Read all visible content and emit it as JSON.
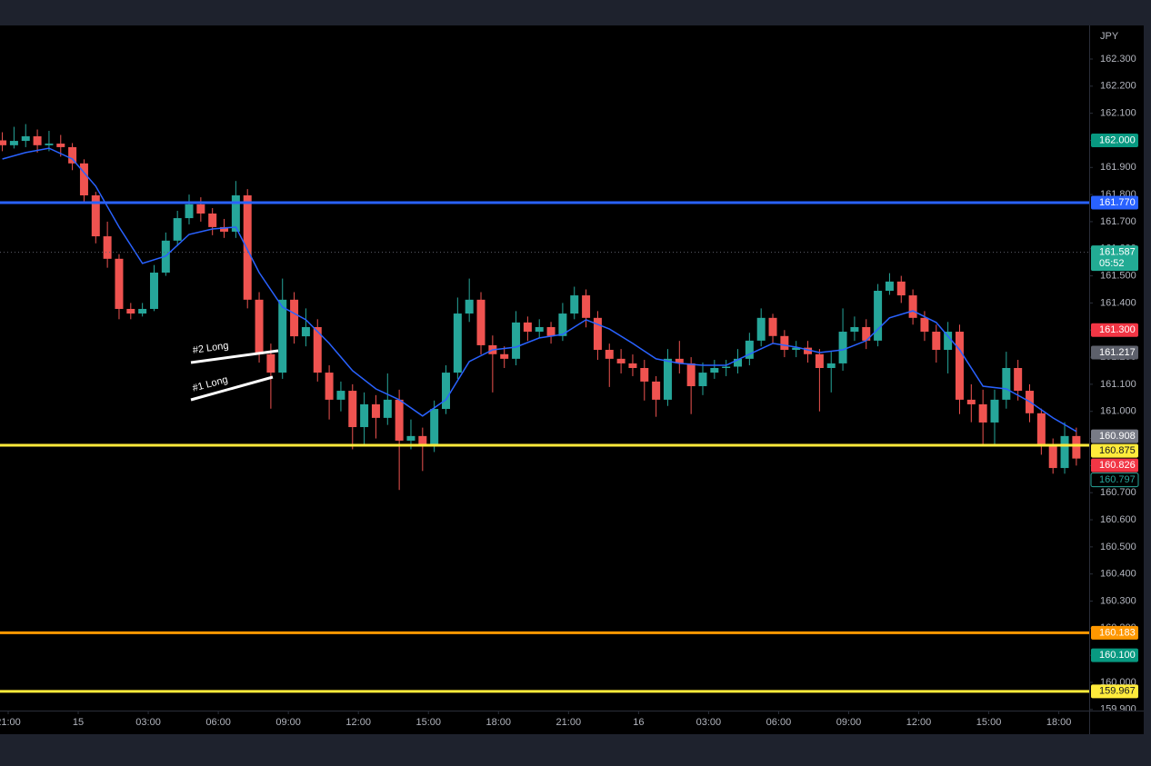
{
  "chart_data": {
    "type": "candlestick",
    "currency": "JPY",
    "up_color": "#26a69a",
    "down_color": "#ef5350",
    "xlim": [
      -13.4,
      173.2
    ],
    "ylim": [
      159.896,
      162.424
    ],
    "xticks": [
      {
        "value": -12,
        "label": "21:00"
      },
      {
        "value": 0,
        "label": "15"
      },
      {
        "value": 12,
        "label": "03:00"
      },
      {
        "value": 24,
        "label": "06:00"
      },
      {
        "value": 36,
        "label": "09:00"
      },
      {
        "value": 48,
        "label": "12:00"
      },
      {
        "value": 60,
        "label": "15:00"
      },
      {
        "value": 72,
        "label": "18:00"
      },
      {
        "value": 84,
        "label": "21:00"
      },
      {
        "value": 96,
        "label": "16"
      },
      {
        "value": 108,
        "label": "03:00"
      },
      {
        "value": 120,
        "label": "06:00"
      },
      {
        "value": 132,
        "label": "09:00"
      },
      {
        "value": 144,
        "label": "12:00"
      },
      {
        "value": 156,
        "label": "15:00"
      },
      {
        "value": 168,
        "label": "18:00"
      }
    ],
    "yticks": [
      {
        "value": 159.9,
        "label": "159.900"
      },
      {
        "value": 160.0,
        "label": "160.000"
      },
      {
        "value": 160.1,
        "label": "160.100"
      },
      {
        "value": 160.2,
        "label": "160.200"
      },
      {
        "value": 160.3,
        "label": "160.300"
      },
      {
        "value": 160.4,
        "label": "160.400"
      },
      {
        "value": 160.5,
        "label": "160.500"
      },
      {
        "value": 160.6,
        "label": "160.600"
      },
      {
        "value": 160.7,
        "label": "160.700"
      },
      {
        "value": 160.8,
        "label": "160.800"
      },
      {
        "value": 160.9,
        "label": "160.900"
      },
      {
        "value": 161.0,
        "label": "161.000"
      },
      {
        "value": 161.1,
        "label": "161.100"
      },
      {
        "value": 161.2,
        "label": "161.200"
      },
      {
        "value": 161.3,
        "label": "161.300"
      },
      {
        "value": 161.4,
        "label": "161.400"
      },
      {
        "value": 161.5,
        "label": "161.500"
      },
      {
        "value": 161.6,
        "label": "161.600"
      },
      {
        "value": 161.7,
        "label": "161.700"
      },
      {
        "value": 161.8,
        "label": "161.800"
      },
      {
        "value": 161.9,
        "label": "161.900"
      },
      {
        "value": 162.0,
        "label": "162.000"
      },
      {
        "value": 162.1,
        "label": "162.100"
      },
      {
        "value": 162.2,
        "label": "162.200"
      },
      {
        "value": 162.3,
        "label": "162.300"
      }
    ],
    "x": [
      -13,
      -11,
      -9,
      -7,
      -5,
      -3,
      -1,
      1,
      3,
      5,
      7,
      9,
      11,
      13,
      15,
      17,
      19,
      21,
      23,
      25,
      27,
      29,
      31,
      33,
      35,
      37,
      39,
      41,
      43,
      45,
      47,
      49,
      51,
      53,
      55,
      57,
      59,
      61,
      63,
      65,
      67,
      69,
      71,
      73,
      75,
      77,
      79,
      81,
      83,
      85,
      87,
      89,
      91,
      93,
      95,
      97,
      99,
      101,
      103,
      105,
      107,
      109,
      111,
      113,
      115,
      117,
      119,
      121,
      123,
      125,
      127,
      129,
      131,
      133,
      135,
      137,
      139,
      141,
      143,
      145,
      147,
      149,
      151,
      153,
      155,
      157,
      159,
      161,
      163,
      165,
      167,
      169,
      171
    ],
    "ohlc": [
      [
        162.0,
        162.03,
        161.96,
        161.982
      ],
      [
        161.982,
        162.05,
        161.97,
        161.998
      ],
      [
        161.998,
        162.06,
        161.975,
        162.015
      ],
      [
        162.015,
        162.04,
        161.955,
        161.982
      ],
      [
        161.982,
        162.035,
        161.96,
        161.988
      ],
      [
        161.988,
        162.02,
        161.94,
        161.975
      ],
      [
        161.975,
        161.99,
        161.89,
        161.915
      ],
      [
        161.915,
        161.93,
        161.77,
        161.797
      ],
      [
        161.797,
        161.81,
        161.62,
        161.646
      ],
      [
        161.646,
        161.7,
        161.53,
        161.563
      ],
      [
        161.563,
        161.58,
        161.34,
        161.378
      ],
      [
        161.378,
        161.4,
        161.34,
        161.361
      ],
      [
        161.361,
        161.4,
        161.35,
        161.378
      ],
      [
        161.378,
        161.54,
        161.37,
        161.512
      ],
      [
        161.512,
        161.66,
        161.5,
        161.63
      ],
      [
        161.63,
        161.74,
        161.61,
        161.713
      ],
      [
        161.713,
        161.8,
        161.69,
        161.764
      ],
      [
        161.764,
        161.79,
        161.7,
        161.73
      ],
      [
        161.73,
        161.75,
        161.65,
        161.68
      ],
      [
        161.68,
        161.71,
        161.64,
        161.663
      ],
      [
        161.663,
        161.85,
        161.64,
        161.797
      ],
      [
        161.797,
        161.82,
        161.38,
        161.412
      ],
      [
        161.412,
        161.44,
        161.18,
        161.211
      ],
      [
        161.211,
        161.25,
        161.01,
        161.143
      ],
      [
        161.143,
        161.49,
        161.12,
        161.412
      ],
      [
        161.412,
        161.44,
        161.25,
        161.277
      ],
      [
        161.277,
        161.38,
        161.24,
        161.311
      ],
      [
        161.311,
        161.34,
        161.11,
        161.143
      ],
      [
        161.143,
        161.17,
        160.97,
        161.043
      ],
      [
        161.043,
        161.11,
        161.0,
        161.076
      ],
      [
        161.076,
        161.1,
        160.86,
        160.942
      ],
      [
        160.942,
        161.07,
        160.88,
        161.026
      ],
      [
        161.026,
        161.06,
        160.9,
        160.976
      ],
      [
        160.976,
        161.14,
        160.95,
        161.043
      ],
      [
        161.043,
        161.08,
        160.71,
        160.892
      ],
      [
        160.892,
        160.97,
        160.86,
        160.909
      ],
      [
        160.909,
        160.94,
        160.78,
        160.875
      ],
      [
        160.875,
        161.04,
        160.85,
        161.009
      ],
      [
        161.009,
        161.17,
        160.99,
        161.143
      ],
      [
        161.143,
        161.42,
        161.12,
        161.361
      ],
      [
        161.361,
        161.49,
        161.33,
        161.412
      ],
      [
        161.412,
        161.44,
        161.21,
        161.244
      ],
      [
        161.244,
        161.28,
        161.07,
        161.211
      ],
      [
        161.211,
        161.24,
        161.16,
        161.194
      ],
      [
        161.194,
        161.37,
        161.17,
        161.328
      ],
      [
        161.328,
        161.35,
        161.26,
        161.294
      ],
      [
        161.294,
        161.34,
        161.27,
        161.311
      ],
      [
        161.311,
        161.33,
        161.25,
        161.278
      ],
      [
        161.278,
        161.4,
        161.26,
        161.361
      ],
      [
        161.361,
        161.46,
        161.34,
        161.428
      ],
      [
        161.428,
        161.45,
        161.31,
        161.345
      ],
      [
        161.345,
        161.37,
        161.19,
        161.227
      ],
      [
        161.227,
        161.25,
        161.09,
        161.194
      ],
      [
        161.194,
        161.23,
        161.14,
        161.177
      ],
      [
        161.177,
        161.21,
        161.13,
        161.16
      ],
      [
        161.16,
        161.19,
        161.04,
        161.11
      ],
      [
        161.11,
        161.13,
        160.98,
        161.043
      ],
      [
        161.043,
        161.23,
        161.02,
        161.194
      ],
      [
        161.194,
        161.26,
        161.14,
        161.177
      ],
      [
        161.177,
        161.2,
        160.99,
        161.093
      ],
      [
        161.093,
        161.18,
        161.06,
        161.143
      ],
      [
        161.143,
        161.19,
        161.12,
        161.16
      ],
      [
        161.16,
        161.19,
        161.13,
        161.165
      ],
      [
        161.165,
        161.23,
        161.14,
        161.194
      ],
      [
        161.194,
        161.29,
        161.17,
        161.261
      ],
      [
        161.261,
        161.38,
        161.24,
        161.345
      ],
      [
        161.345,
        161.36,
        161.25,
        161.278
      ],
      [
        161.278,
        161.3,
        161.2,
        161.227
      ],
      [
        161.227,
        161.26,
        161.2,
        161.235
      ],
      [
        161.235,
        161.26,
        161.18,
        161.211
      ],
      [
        161.211,
        161.23,
        161.0,
        161.16
      ],
      [
        161.16,
        161.22,
        161.07,
        161.177
      ],
      [
        161.177,
        161.38,
        161.15,
        161.294
      ],
      [
        161.294,
        161.35,
        161.26,
        161.311
      ],
      [
        161.311,
        161.34,
        161.23,
        161.261
      ],
      [
        161.261,
        161.47,
        161.24,
        161.445
      ],
      [
        161.445,
        161.51,
        161.43,
        161.479
      ],
      [
        161.479,
        161.5,
        161.4,
        161.428
      ],
      [
        161.428,
        161.45,
        161.32,
        161.345
      ],
      [
        161.345,
        161.37,
        161.26,
        161.294
      ],
      [
        161.294,
        161.32,
        161.18,
        161.227
      ],
      [
        161.227,
        161.33,
        161.14,
        161.294
      ],
      [
        161.294,
        161.32,
        160.99,
        161.043
      ],
      [
        161.043,
        161.1,
        160.96,
        161.026
      ],
      [
        161.026,
        161.08,
        160.88,
        160.959
      ],
      [
        160.959,
        161.08,
        160.87,
        161.043
      ],
      [
        161.043,
        161.22,
        161.01,
        161.16
      ],
      [
        161.16,
        161.19,
        161.04,
        161.076
      ],
      [
        161.076,
        161.1,
        160.96,
        160.993
      ],
      [
        160.993,
        161.01,
        160.84,
        160.875
      ],
      [
        160.875,
        160.9,
        160.77,
        160.791
      ],
      [
        160.791,
        160.96,
        160.77,
        160.909
      ],
      [
        160.909,
        160.94,
        160.8,
        160.826
      ]
    ],
    "ma": {
      "color": "#2962ff",
      "x": [
        -13,
        -9,
        -5,
        -1,
        3,
        7,
        11,
        15,
        19,
        23,
        27,
        31,
        35,
        39,
        43,
        47,
        51,
        55,
        59,
        63,
        67,
        71,
        75,
        79,
        83,
        87,
        91,
        95,
        99,
        103,
        107,
        111,
        115,
        119,
        123,
        127,
        131,
        135,
        139,
        143,
        147,
        151,
        155,
        159,
        163,
        167,
        171
      ],
      "values": [
        161.931,
        161.955,
        161.971,
        161.931,
        161.831,
        161.68,
        161.546,
        161.573,
        161.653,
        161.673,
        161.68,
        161.512,
        161.385,
        161.338,
        161.251,
        161.15,
        161.083,
        161.043,
        160.983,
        161.043,
        161.184,
        161.227,
        161.237,
        161.271,
        161.284,
        161.338,
        161.304,
        161.251,
        161.194,
        161.177,
        161.17,
        161.17,
        161.211,
        161.251,
        161.237,
        161.217,
        161.227,
        161.261,
        161.345,
        161.371,
        161.328,
        161.227,
        161.093,
        161.083,
        161.036,
        160.976,
        160.926
      ]
    },
    "price_labels": [
      {
        "value": 162.0,
        "label": "162.000",
        "bg": "#089981",
        "fg": "#ffffff"
      },
      {
        "value": 161.77,
        "label": "161.770",
        "bg": "#2962ff",
        "fg": "#ffffff",
        "line": "solid"
      },
      {
        "value": 161.587,
        "label": "161.587",
        "sub": "05:52",
        "bg": "#22ab94",
        "fg": "#ffffff",
        "line": "dotted"
      },
      {
        "value": 161.3,
        "label": "161.300",
        "bg": "#f23645",
        "fg": "#ffffff"
      },
      {
        "value": 161.217,
        "label": "161.217",
        "bg": "#5d606b",
        "fg": "#ffffff"
      },
      {
        "value": 160.908,
        "label": "160.908",
        "bg": "#787b86",
        "fg": "#ffffff"
      },
      {
        "value": 160.875,
        "label": "160.875",
        "bg": "#ffeb3b",
        "fg": "#131722",
        "line": "solid"
      },
      {
        "value": 160.826,
        "label": "160.826",
        "bg": "#f23645",
        "fg": "#ffffff"
      },
      {
        "value": 160.797,
        "label": "160.797",
        "bg": "#000000",
        "fg": "#26a69a",
        "border": "#26a69a"
      },
      {
        "value": 160.183,
        "label": "160.183",
        "bg": "#ff9800",
        "fg": "#ffffff",
        "line": "solid"
      },
      {
        "value": 160.1,
        "label": "160.100",
        "bg": "#089981",
        "fg": "#ffffff"
      },
      {
        "value": 159.967,
        "label": "159.967",
        "bg": "#ffeb3b",
        "fg": "#131722",
        "line": "solid"
      }
    ],
    "annotations": [
      {
        "text": "#2 Long"
      },
      {
        "text": "#1 Long"
      }
    ]
  }
}
